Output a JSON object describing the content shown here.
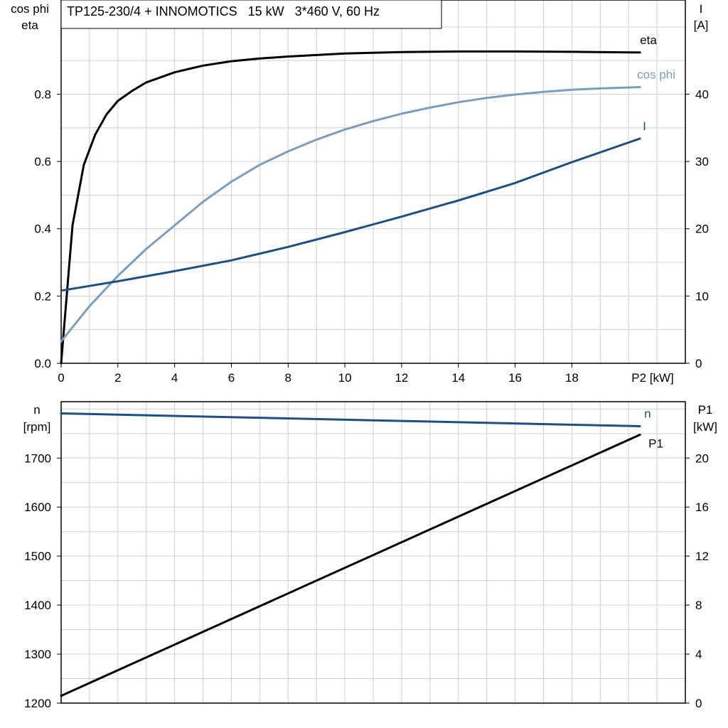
{
  "chart_data": [
    {
      "type": "line",
      "title": "TP125-230/4 + INNOMOTICS   15 kW   3*460 V, 60 Hz",
      "left_axis_title": [
        "cos phi",
        "eta"
      ],
      "right_axis_title": [
        "I",
        "[A]"
      ],
      "xlabel": "P2 [kW]",
      "xlim": [
        0,
        22
      ],
      "x_ticks": [
        "0",
        "2",
        "4",
        "6",
        "8",
        "10",
        "12",
        "14",
        "16",
        "18"
      ],
      "ylim_left": [
        0,
        1.08
      ],
      "y_ticks_left": [
        "0.0",
        "0.2",
        "0.4",
        "0.6",
        "0.8"
      ],
      "ylim_right": [
        0,
        54
      ],
      "y_ticks_right": [
        "0",
        "10",
        "20",
        "30",
        "40"
      ],
      "grid": true,
      "series": [
        {
          "name": "eta",
          "axis": "left",
          "color": "#000000",
          "x": [
            0,
            0.4,
            0.8,
            1.2,
            1.6,
            2.0,
            2.5,
            3.0,
            3.5,
            4.0,
            5.0,
            6.0,
            7.0,
            8.0,
            10.0,
            12.0,
            14.0,
            16.0,
            18.0,
            20.4
          ],
          "y": [
            0.0,
            0.41,
            0.59,
            0.68,
            0.74,
            0.78,
            0.81,
            0.835,
            0.85,
            0.865,
            0.885,
            0.898,
            0.906,
            0.912,
            0.921,
            0.925,
            0.927,
            0.927,
            0.926,
            0.924
          ]
        },
        {
          "name": "cos phi",
          "axis": "left",
          "color": "#7a9cc0",
          "x": [
            0,
            1,
            2,
            3,
            4,
            5,
            6,
            7,
            8,
            9,
            10,
            11,
            12,
            13,
            14,
            15,
            16,
            17,
            18,
            19,
            20.4
          ],
          "y": [
            0.065,
            0.17,
            0.26,
            0.34,
            0.41,
            0.48,
            0.54,
            0.59,
            0.63,
            0.665,
            0.695,
            0.72,
            0.742,
            0.76,
            0.776,
            0.789,
            0.799,
            0.807,
            0.813,
            0.817,
            0.821
          ]
        },
        {
          "name": "I",
          "axis": "right",
          "color": "#1b4f86",
          "x": [
            0,
            2,
            4,
            6,
            8,
            10,
            12,
            14,
            16,
            18,
            20.4
          ],
          "y": [
            10.8,
            12.2,
            13.7,
            15.3,
            17.3,
            19.5,
            21.8,
            24.2,
            26.8,
            29.9,
            33.4
          ]
        }
      ]
    },
    {
      "type": "line",
      "left_axis_title": [
        "n",
        "[rpm]"
      ],
      "right_axis_title": [
        "P1",
        "[kW]"
      ],
      "xlim": [
        0,
        22
      ],
      "ylim_left": [
        1200,
        1815
      ],
      "y_ticks_left": [
        "1200",
        "1300",
        "1400",
        "1500",
        "1600",
        "1700"
      ],
      "ylim_right": [
        0,
        24.6
      ],
      "y_ticks_right": [
        "0",
        "4",
        "8",
        "12",
        "16",
        "20"
      ],
      "grid": true,
      "series": [
        {
          "name": "n",
          "axis": "left",
          "color": "#1b4f86",
          "x": [
            0,
            20.4
          ],
          "y": [
            1791,
            1765
          ]
        },
        {
          "name": "P1",
          "axis": "right",
          "color": "#000000",
          "x": [
            0,
            20.4
          ],
          "y": [
            0.6,
            21.9
          ]
        }
      ]
    }
  ]
}
